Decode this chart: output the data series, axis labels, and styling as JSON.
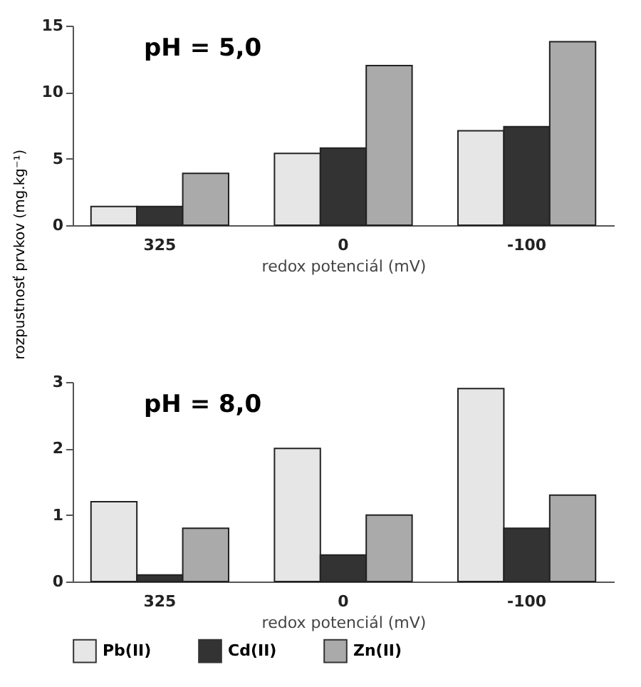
{
  "chart_data": [
    {
      "type": "bar",
      "annotations": [
        "pH = 5,0"
      ],
      "xlabel": "redox potenciál (mV)",
      "ylabel": "rozpustnosť prvkov (mg.kg⁻¹)",
      "categories": [
        "325",
        "0",
        "-100"
      ],
      "ylim": [
        0,
        15
      ],
      "yticks": [
        0,
        5,
        10,
        15
      ],
      "grid": false,
      "legend": false,
      "series": [
        {
          "color": "#e6e6e6",
          "values": [
            1.4,
            5.4,
            7.1
          ]
        },
        {
          "color": "#333333",
          "values": [
            1.4,
            5.8,
            7.4
          ]
        },
        {
          "color": "#aaaaaa",
          "values": [
            3.9,
            12.0,
            13.8
          ]
        }
      ]
    },
    {
      "type": "bar",
      "annotations": [
        "pH = 8,0"
      ],
      "xlabel": "redox potenciál (mV)",
      "categories": [
        "325",
        "0",
        "-100"
      ],
      "ylim": [
        0,
        3
      ],
      "yticks": [
        0,
        1,
        2,
        3
      ],
      "grid": false,
      "legend": "bottom",
      "series": [
        {
          "name": "Pb(II)",
          "color": "#e6e6e6",
          "values": [
            1.2,
            2.0,
            2.9
          ]
        },
        {
          "name": "Cd(II)",
          "color": "#333333",
          "values": [
            0.1,
            0.4,
            0.8
          ]
        },
        {
          "name": "Zn(II)",
          "color": "#aaaaaa",
          "values": [
            0.8,
            1.0,
            1.3
          ]
        }
      ]
    }
  ]
}
